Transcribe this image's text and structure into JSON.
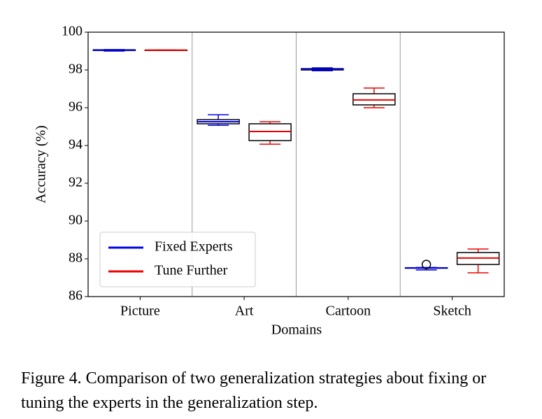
{
  "chart_data": {
    "type": "box",
    "ylabel": "Accuracy (%)",
    "xlabel": "Domains",
    "categories": [
      "Picture",
      "Art",
      "Cartoon",
      "Sketch"
    ],
    "ylim": [
      86,
      100
    ],
    "yticks": [
      86,
      88,
      90,
      92,
      94,
      96,
      98,
      100
    ],
    "legend": "lower left",
    "series": [
      {
        "name": "Fixed Experts",
        "color": "#0000ee",
        "boxes": [
          {
            "whislo": 99.0,
            "q1": 99.03,
            "med": 99.05,
            "q3": 99.07,
            "whishi": 99.08,
            "fliers": []
          },
          {
            "whislo": 95.07,
            "q1": 95.15,
            "med": 95.26,
            "q3": 95.37,
            "whishi": 95.63,
            "fliers": []
          },
          {
            "whislo": 97.96,
            "q1": 98.0,
            "med": 98.04,
            "q3": 98.07,
            "whishi": 98.11,
            "fliers": []
          },
          {
            "whislo": 87.41,
            "q1": 87.5,
            "med": 87.52,
            "q3": 87.53,
            "whishi": 87.54,
            "fliers": [
              87.7
            ]
          }
        ]
      },
      {
        "name": "Tune Further",
        "color": "#ee0000",
        "boxes": [
          {
            "whislo": 99.04,
            "q1": 99.05,
            "med": 99.05,
            "q3": 99.05,
            "whishi": 99.06,
            "fliers": []
          },
          {
            "whislo": 94.07,
            "q1": 94.26,
            "med": 94.74,
            "q3": 95.15,
            "whishi": 95.26,
            "fliers": []
          },
          {
            "whislo": 96.0,
            "q1": 96.15,
            "med": 96.41,
            "q3": 96.74,
            "whishi": 97.04,
            "fliers": []
          },
          {
            "whislo": 87.26,
            "q1": 87.7,
            "med": 88.04,
            "q3": 88.33,
            "whishi": 88.52,
            "fliers": []
          }
        ]
      }
    ]
  },
  "caption": "Figure 4. Comparison of two generalization strategies about fixing or tuning the experts in the generalization step."
}
